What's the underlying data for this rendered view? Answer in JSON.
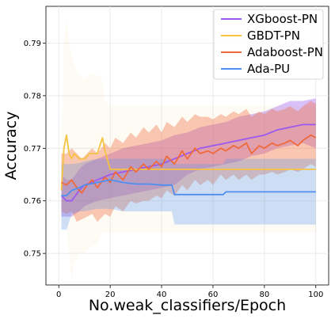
{
  "chart_data": {
    "type": "line",
    "xlabel": "No.weak_classifiers/Epoch",
    "ylabel": "Accuracy",
    "xlim": [
      -5,
      105
    ],
    "ylim": [
      0.744,
      0.797
    ],
    "xticks": [
      0,
      20,
      40,
      60,
      80,
      100
    ],
    "yticks": [
      0.75,
      0.76,
      0.77,
      0.78,
      0.79
    ],
    "grid": true,
    "legend_position": "top-right",
    "series": [
      {
        "name": "XGboost-PN",
        "color": "#9b59f0",
        "x": [
          1,
          3,
          5,
          8,
          10,
          15,
          20,
          25,
          30,
          35,
          40,
          45,
          50,
          55,
          60,
          65,
          70,
          75,
          80,
          85,
          90,
          95,
          100
        ],
        "y": [
          0.761,
          0.76,
          0.76,
          0.762,
          0.763,
          0.764,
          0.765,
          0.7655,
          0.766,
          0.7665,
          0.767,
          0.768,
          0.769,
          0.77,
          0.7705,
          0.771,
          0.7715,
          0.772,
          0.7725,
          0.7735,
          0.774,
          0.7745,
          0.7745
        ],
        "lower": [
          0.757,
          0.757,
          0.757,
          0.758,
          0.759,
          0.76,
          0.7605,
          0.761,
          0.7615,
          0.762,
          0.7625,
          0.763,
          0.765,
          0.766,
          0.7665,
          0.767,
          0.7675,
          0.7685,
          0.769,
          0.77,
          0.7705,
          0.771,
          0.77
        ],
        "upper": [
          0.765,
          0.764,
          0.764,
          0.766,
          0.767,
          0.768,
          0.769,
          0.77,
          0.7705,
          0.771,
          0.7715,
          0.7725,
          0.773,
          0.774,
          0.7745,
          0.775,
          0.776,
          0.7765,
          0.777,
          0.778,
          0.779,
          0.779,
          0.7795
        ]
      },
      {
        "name": "GBDT-PN",
        "color": "#f5c242",
        "x": [
          1,
          2,
          3,
          4,
          5,
          6,
          8,
          10,
          12,
          15,
          17,
          18,
          20,
          30,
          40,
          50,
          60,
          70,
          80,
          90,
          100
        ],
        "y": [
          0.762,
          0.77,
          0.7725,
          0.769,
          0.768,
          0.769,
          0.768,
          0.768,
          0.769,
          0.769,
          0.772,
          0.7695,
          0.766,
          0.766,
          0.766,
          0.766,
          0.766,
          0.766,
          0.766,
          0.766,
          0.766
        ],
        "lower": [
          0.755,
          0.755,
          0.755,
          0.75,
          0.745,
          0.748,
          0.75,
          0.75,
          0.751,
          0.752,
          0.754,
          0.754,
          0.754,
          0.754,
          0.754,
          0.754,
          0.754,
          0.754,
          0.754,
          0.754,
          0.754
        ],
        "upper": [
          0.768,
          0.79,
          0.795,
          0.79,
          0.788,
          0.786,
          0.784,
          0.783,
          0.784,
          0.784,
          0.783,
          0.779,
          0.778,
          0.778,
          0.778,
          0.778,
          0.778,
          0.778,
          0.778,
          0.778,
          0.778
        ]
      },
      {
        "name": "Adaboost-PN",
        "color": "#f0693a",
        "x": [
          1,
          3,
          5,
          7,
          9,
          11,
          13,
          15,
          18,
          20,
          22,
          25,
          28,
          30,
          33,
          35,
          38,
          40,
          42,
          45,
          48,
          50,
          53,
          55,
          58,
          60,
          63,
          65,
          68,
          70,
          73,
          75,
          78,
          80,
          83,
          85,
          88,
          90,
          93,
          95,
          98,
          100
        ],
        "y": [
          0.7635,
          0.763,
          0.764,
          0.7625,
          0.7615,
          0.763,
          0.764,
          0.7625,
          0.7645,
          0.7635,
          0.7655,
          0.764,
          0.7665,
          0.7655,
          0.767,
          0.766,
          0.7675,
          0.7665,
          0.7685,
          0.767,
          0.7695,
          0.768,
          0.77,
          0.769,
          0.7695,
          0.769,
          0.77,
          0.7695,
          0.7705,
          0.77,
          0.771,
          0.769,
          0.7705,
          0.77,
          0.771,
          0.7705,
          0.771,
          0.7715,
          0.7705,
          0.7715,
          0.7725,
          0.772
        ],
        "lower": [
          0.758,
          0.7575,
          0.758,
          0.756,
          0.7565,
          0.757,
          0.7575,
          0.756,
          0.7575,
          0.757,
          0.759,
          0.758,
          0.76,
          0.7595,
          0.76,
          0.76,
          0.761,
          0.7605,
          0.762,
          0.761,
          0.763,
          0.762,
          0.764,
          0.763,
          0.764,
          0.763,
          0.765,
          0.764,
          0.765,
          0.764,
          0.765,
          0.764,
          0.765,
          0.765,
          0.7655,
          0.765,
          0.7655,
          0.766,
          0.7655,
          0.766,
          0.767,
          0.7665
        ],
        "upper": [
          0.769,
          0.769,
          0.77,
          0.769,
          0.768,
          0.769,
          0.77,
          0.769,
          0.771,
          0.77,
          0.772,
          0.771,
          0.773,
          0.772,
          0.774,
          0.773,
          0.7745,
          0.773,
          0.775,
          0.774,
          0.776,
          0.775,
          0.7765,
          0.776,
          0.776,
          0.7755,
          0.7765,
          0.776,
          0.777,
          0.7765,
          0.7775,
          0.776,
          0.777,
          0.7765,
          0.7775,
          0.777,
          0.7775,
          0.778,
          0.777,
          0.778,
          0.779,
          0.7785
        ]
      },
      {
        "name": "Ada-PU",
        "color": "#4f8ff0",
        "x": [
          1,
          3,
          5,
          8,
          10,
          15,
          20,
          25,
          30,
          35,
          40,
          44,
          45,
          50,
          55,
          60,
          64,
          65,
          70,
          80,
          90,
          100
        ],
        "y": [
          0.761,
          0.761,
          0.762,
          0.7625,
          0.763,
          0.7635,
          0.764,
          0.7635,
          0.7632,
          0.7632,
          0.763,
          0.763,
          0.7612,
          0.7612,
          0.7612,
          0.7612,
          0.7612,
          0.7617,
          0.7617,
          0.7617,
          0.7617,
          0.7617
        ],
        "lower": [
          0.7545,
          0.7545,
          0.7575,
          0.758,
          0.758,
          0.7585,
          0.7585,
          0.758,
          0.758,
          0.758,
          0.758,
          0.758,
          0.7555,
          0.7555,
          0.7555,
          0.7555,
          0.7555,
          0.7555,
          0.7555,
          0.7555,
          0.7555,
          0.7555
        ],
        "upper": [
          0.767,
          0.767,
          0.767,
          0.7672,
          0.7675,
          0.768,
          0.768,
          0.768,
          0.768,
          0.768,
          0.768,
          0.768,
          0.767,
          0.767,
          0.767,
          0.767,
          0.767,
          0.768,
          0.768,
          0.768,
          0.768,
          0.768
        ]
      }
    ]
  }
}
